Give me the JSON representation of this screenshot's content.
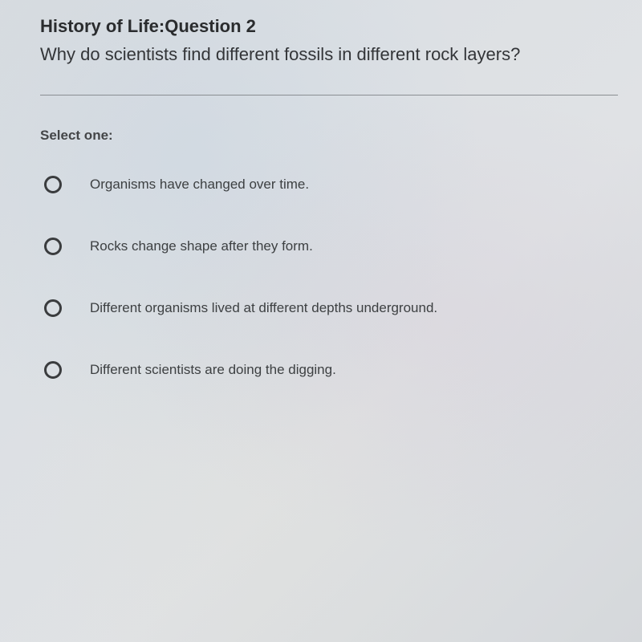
{
  "title": "History of Life:Question 2",
  "question": "Why do scientists find different fossils in different rock layers?",
  "prompt": "Select one:",
  "options": [
    {
      "label": "Organisms have changed over time."
    },
    {
      "label": "Rocks change shape after they form."
    },
    {
      "label": "Different organisms lived at different depths underground."
    },
    {
      "label": "Different scientists are doing the digging."
    }
  ],
  "colors": {
    "text_primary": "#2a2c2e",
    "text_body": "#3d4042",
    "divider": "#8a8e92",
    "radio_border": "#3a3c3e",
    "background": "#dce0e4"
  },
  "typography": {
    "title_fontsize": 22,
    "title_weight": "bold",
    "question_fontsize": 22,
    "prompt_fontsize": 17,
    "option_fontsize": 17,
    "font_family": "Arial"
  },
  "layout": {
    "option_spacing": 55,
    "radio_size": 22,
    "radio_border_width": 3
  }
}
